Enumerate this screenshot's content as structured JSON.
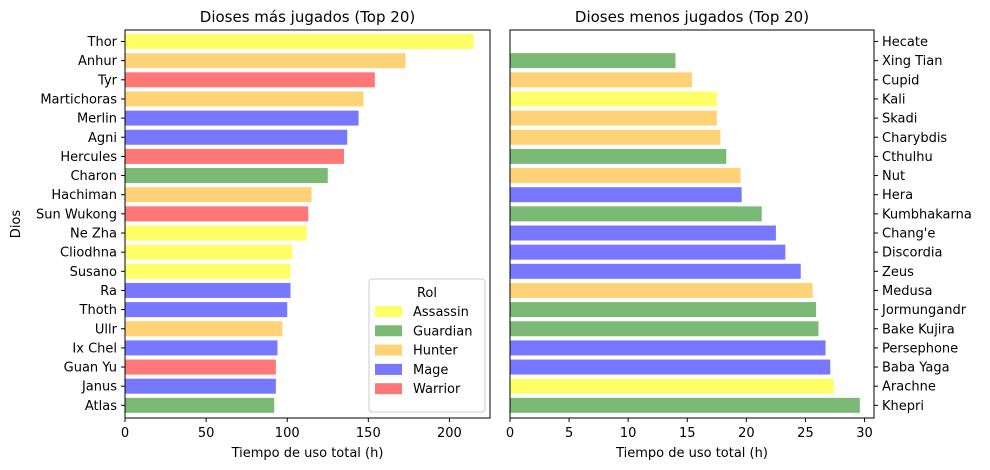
{
  "roles": [
    {
      "name": "Assassin",
      "color": "#ffff66"
    },
    {
      "name": "Guardian",
      "color": "#7aba74"
    },
    {
      "name": "Hunter",
      "color": "#ffd277"
    },
    {
      "name": "Mage",
      "color": "#7777ff"
    },
    {
      "name": "Warrior",
      "color": "#ff7777"
    }
  ],
  "legend_title": "Rol",
  "chart_data": [
    {
      "type": "bar",
      "orientation": "horizontal",
      "title": "Dioses más jugados (Top 20)",
      "xlabel": "Tiempo de uso total (h)",
      "ylabel": "Dios",
      "xlim": [
        0,
        225
      ],
      "xticks": [
        0,
        50,
        100,
        150,
        200
      ],
      "legend_position": "lower right",
      "categories": [
        "Thor",
        "Anhur",
        "Tyr",
        "Martichoras",
        "Merlin",
        "Agni",
        "Hercules",
        "Charon",
        "Hachiman",
        "Sun Wukong",
        "Ne Zha",
        "Cliodhna",
        "Susano",
        "Ra",
        "Thoth",
        "Ullr",
        "Ix Chel",
        "Guan Yu",
        "Janus",
        "Atlas"
      ],
      "values": [
        215,
        173,
        154,
        147,
        144,
        137,
        135,
        125,
        115,
        113,
        112,
        103,
        102,
        102,
        100,
        97,
        94,
        93,
        93,
        92
      ],
      "roles": [
        "Assassin",
        "Hunter",
        "Warrior",
        "Hunter",
        "Mage",
        "Mage",
        "Warrior",
        "Guardian",
        "Hunter",
        "Warrior",
        "Assassin",
        "Assassin",
        "Assassin",
        "Mage",
        "Mage",
        "Hunter",
        "Mage",
        "Warrior",
        "Mage",
        "Guardian"
      ]
    },
    {
      "type": "bar",
      "orientation": "horizontal",
      "title": "Dioses menos jugados (Top 20)",
      "xlabel": "Tiempo de uso total (h)",
      "ylabel": "",
      "xlim": [
        0,
        30.8
      ],
      "xticks": [
        0,
        5,
        10,
        15,
        20,
        25,
        30
      ],
      "yaxis_side": "right",
      "categories": [
        "Hecate",
        "Xing Tian",
        "Cupid",
        "Kali",
        "Skadi",
        "Charybdis",
        "Cthulhu",
        "Nut",
        "Hera",
        "Kumbhakarna",
        "Chang'e",
        "Discordia",
        "Zeus",
        "Medusa",
        "Jormungandr",
        "Bake Kujira",
        "Persephone",
        "Baba Yaga",
        "Arachne",
        "Khepri"
      ],
      "values": [
        0,
        14.0,
        15.4,
        17.5,
        17.5,
        17.8,
        18.3,
        19.5,
        19.6,
        21.3,
        22.5,
        23.3,
        24.6,
        25.6,
        25.9,
        26.1,
        26.7,
        27.1,
        27.4,
        29.6
      ],
      "roles": [
        "Mage",
        "Guardian",
        "Hunter",
        "Assassin",
        "Hunter",
        "Hunter",
        "Guardian",
        "Hunter",
        "Mage",
        "Guardian",
        "Mage",
        "Mage",
        "Mage",
        "Hunter",
        "Guardian",
        "Guardian",
        "Mage",
        "Mage",
        "Assassin",
        "Guardian"
      ]
    }
  ]
}
